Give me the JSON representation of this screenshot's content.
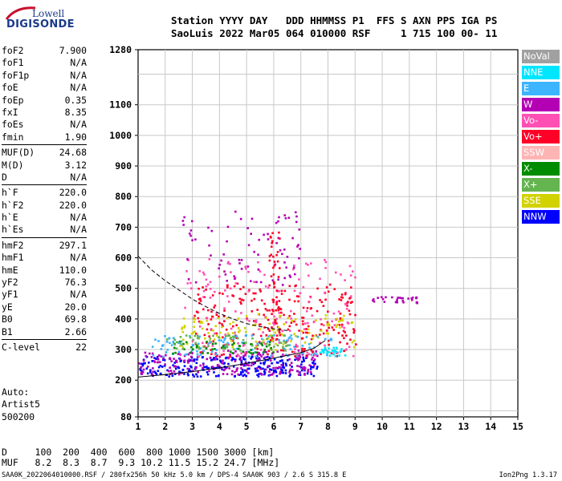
{
  "logo": {
    "line1": "Lowell",
    "line2": "DIGISONDE"
  },
  "header": {
    "line1": "Station YYYY DAY   DDD HHMMSS P1  FFS S AXN PPS IGA PS",
    "line2": "SaoLuis 2022 Mar05 064 010000 RSF     1 715 100 00- 11"
  },
  "params_group1": [
    {
      "key": "foF2",
      "value": "7.900"
    },
    {
      "key": "foF1",
      "value": "N/A"
    },
    {
      "key": "foF1p",
      "value": "N/A"
    },
    {
      "key": "foE",
      "value": "N/A"
    },
    {
      "key": "foEp",
      "value": "0.35"
    },
    {
      "key": "fxI",
      "value": "8.35"
    },
    {
      "key": "foEs",
      "value": "N/A"
    },
    {
      "key": "fmin",
      "value": "1.90"
    }
  ],
  "params_group2": [
    {
      "key": "MUF(D)",
      "value": "24.68"
    },
    {
      "key": "M(D)",
      "value": "3.12"
    },
    {
      "key": "D",
      "value": "N/A"
    }
  ],
  "params_group3": [
    {
      "key": "h`F",
      "value": "220.0"
    },
    {
      "key": "h`F2",
      "value": "220.0"
    },
    {
      "key": "h`E",
      "value": "N/A"
    },
    {
      "key": "h`Es",
      "value": "N/A"
    }
  ],
  "params_group4": [
    {
      "key": "hmF2",
      "value": "297.1"
    },
    {
      "key": "hmF1",
      "value": "N/A"
    },
    {
      "key": "hmE",
      "value": "110.0"
    },
    {
      "key": "yF2",
      "value": "76.3"
    },
    {
      "key": "yF1",
      "value": "N/A"
    },
    {
      "key": "yE",
      "value": "20.0"
    },
    {
      "key": "B0",
      "value": "69.8"
    },
    {
      "key": "B1",
      "value": "2.66"
    }
  ],
  "params_group5": [
    {
      "key": "C-level",
      "value": "22"
    }
  ],
  "auto": {
    "line1": "Auto:",
    "line2": "Artist5",
    "line3": "500200"
  },
  "d_table": {
    "d_row": "D     100  200  400  600  800 1000 1500 3000 [km]",
    "muf_row": "MUF   8.2  8.3  8.7  9.3 10.2 11.5 15.2 24.7 [MHz]"
  },
  "footer": {
    "left": "SAA0K_2022064010000.RSF / 280fx256h 50 kHz 5.0 km / DPS-4 SAA0K 903 / 2.6 S 315.8 E",
    "right": "Ion2Png 1.3.17"
  },
  "legend": [
    {
      "label": "NoVal",
      "color": "#a0a0a0"
    },
    {
      "label": "NNE",
      "color": "#00e6ff"
    },
    {
      "label": "E",
      "color": "#3cb4ff"
    },
    {
      "label": "W",
      "color": "#b400b4"
    },
    {
      "label": "Vo-",
      "color": "#ff50b4"
    },
    {
      "label": "Vo+",
      "color": "#ff0028"
    },
    {
      "label": "SSW",
      "color": "#ffb4b4"
    },
    {
      "label": "X-",
      "color": "#008c00"
    },
    {
      "label": "X+",
      "color": "#64b450"
    },
    {
      "label": "SSE",
      "color": "#d2d200"
    },
    {
      "label": "NNW",
      "color": "#0000ff"
    }
  ],
  "chart_data": {
    "type": "scatter",
    "title": "",
    "xlabel": "",
    "ylabel": "",
    "xlim": [
      1,
      15
    ],
    "ylim": [
      80,
      1280
    ],
    "x_ticks": [
      1,
      2,
      3,
      4,
      5,
      6,
      7,
      8,
      9,
      10,
      11,
      12,
      13,
      14,
      15
    ],
    "y_ticks": [
      80,
      200,
      300,
      400,
      500,
      600,
      700,
      800,
      900,
      1000,
      1100,
      1280
    ],
    "grid": true,
    "legend_placement": "right",
    "curves": [
      {
        "style": "dashed",
        "x": [
          1,
          1.5,
          2,
          2.5,
          3,
          3.5,
          4,
          4.5,
          5,
          5.5,
          6,
          6.5
        ],
        "y": [
          605,
          560,
          525,
          495,
          465,
          440,
          418,
          400,
          385,
          375,
          368,
          362
        ]
      },
      {
        "style": "solid",
        "x": [
          1,
          2,
          3,
          4,
          5,
          6,
          7,
          7.5,
          7.9
        ],
        "y": [
          210,
          218,
          228,
          240,
          255,
          272,
          290,
          305,
          330
        ]
      }
    ],
    "point_clusters": [
      {
        "color": "#0000ff",
        "x_range": [
          1,
          7.6
        ],
        "y_range": [
          215,
          280
        ],
        "count": 260
      },
      {
        "color": "#b400b4",
        "x_range": [
          1,
          7.6
        ],
        "y_range": [
          220,
          300
        ],
        "count": 200
      },
      {
        "color": "#ff0028",
        "x_range": [
          3,
          9
        ],
        "y_range": [
          280,
          520
        ],
        "count": 260
      },
      {
        "color": "#ff50b4",
        "x_range": [
          2.5,
          9
        ],
        "y_range": [
          280,
          600
        ],
        "count": 160
      },
      {
        "color": "#d2d200",
        "x_range": [
          2.5,
          9
        ],
        "y_range": [
          300,
          420
        ],
        "count": 120
      },
      {
        "color": "#3cb4ff",
        "x_range": [
          1.5,
          8.2
        ],
        "y_range": [
          280,
          350
        ],
        "count": 110
      },
      {
        "color": "#008c00",
        "x_range": [
          2,
          6
        ],
        "y_range": [
          290,
          330
        ],
        "count": 50
      },
      {
        "color": "#64b450",
        "x_range": [
          2,
          6.5
        ],
        "y_range": [
          300,
          350
        ],
        "count": 60
      },
      {
        "color": "#b400b4",
        "x_range": [
          2.5,
          7
        ],
        "y_range": [
          500,
          760
        ],
        "count": 80
      },
      {
        "color": "#ff0028",
        "x_range": [
          5.8,
          6.2
        ],
        "y_range": [
          330,
          700
        ],
        "count": 50
      },
      {
        "color": "#b400b4",
        "x_range": [
          9.6,
          11.3
        ],
        "y_range": [
          455,
          475
        ],
        "count": 30
      },
      {
        "color": "#00e6ff",
        "x_range": [
          7.6,
          8.6
        ],
        "y_range": [
          280,
          310
        ],
        "count": 30
      }
    ]
  }
}
